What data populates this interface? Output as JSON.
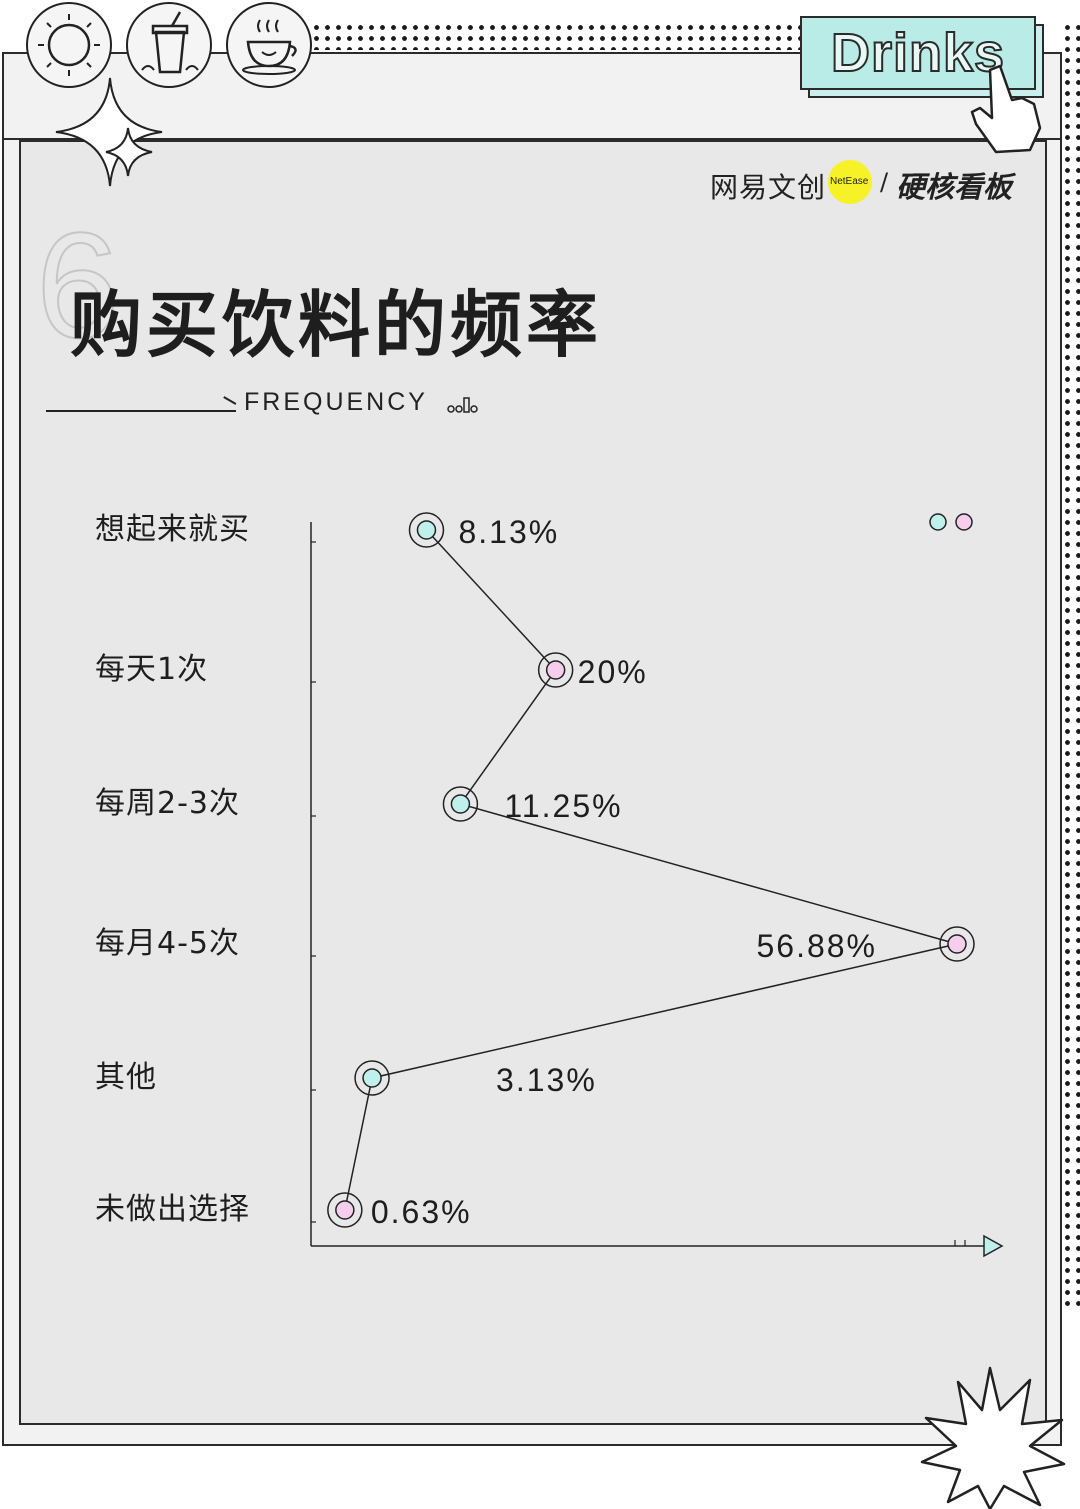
{
  "header": {
    "tag": "Drinks",
    "brand_cn": "网易文创",
    "brand_en": "NetEase",
    "brand_slash": "/",
    "brand_section": "硬核看板",
    "section_number": "6",
    "title": "购买饮料的频率",
    "subtitle": "FREQUENCY"
  },
  "icons": [
    "sun-icon",
    "drink-cup-icon",
    "coffee-cup-icon",
    "sparkle-icon",
    "pointer-hand-icon",
    "starburst-icon"
  ],
  "colors": {
    "cyan_marker": "#bff0ec",
    "pink_marker": "#f6cdec",
    "brand_yellow": "#f6f227",
    "tag_bg": "#b9ece6"
  },
  "chart_data": {
    "type": "line",
    "orientation": "horizontal-categories",
    "categories": [
      "想起来就买",
      "每天1次",
      "每周2-3次",
      "每月4-5次",
      "其他",
      "未做出选择"
    ],
    "values": [
      8.13,
      20,
      11.25,
      56.88,
      3.13,
      0.63
    ],
    "value_labels": [
      "8.13%",
      "20%",
      "11.25%",
      "56.88%",
      "3.13%",
      "0.63%"
    ],
    "marker_colors": [
      "cyan",
      "pink",
      "cyan",
      "pink",
      "cyan",
      "pink"
    ],
    "xlim": [
      0,
      60
    ],
    "unit": "%",
    "grid": false,
    "legend": "none"
  }
}
